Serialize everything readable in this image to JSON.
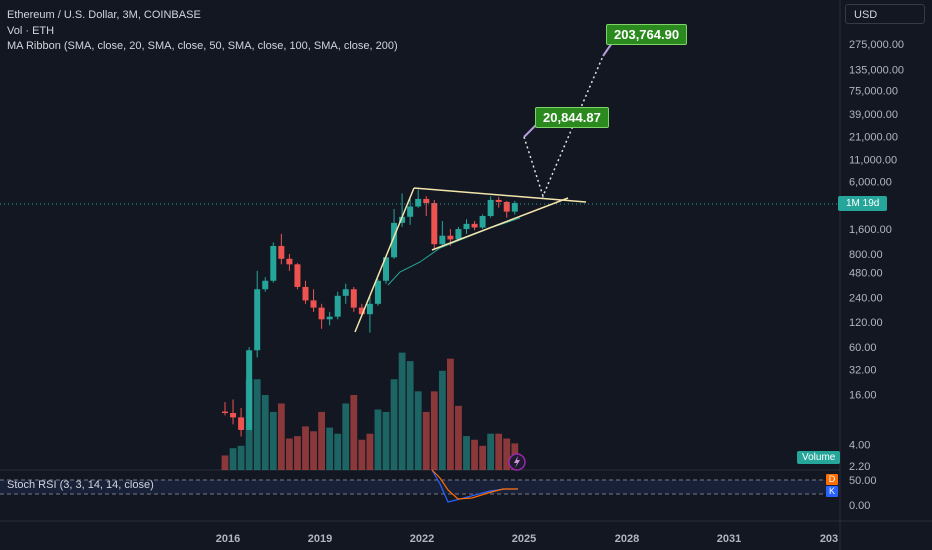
{
  "header": {
    "symbol_line": "Ethereum / U.S. Dollar, 3M, COINBASE",
    "vol_line": "Vol · ETH",
    "ma_line": "MA Ribbon (SMA, close, 20, SMA, close, 50, SMA, close, 100, SMA, close, 200)"
  },
  "currency": "USD",
  "targets": {
    "upper": "203,764.90",
    "lower": "20,844.87"
  },
  "current_tag": "1M 19d",
  "volume_tag": "Volume",
  "stoch": {
    "label": "Stoch RSI (3, 3, 14, 14, close)",
    "d": "D",
    "k": "K",
    "ticks": [
      "50.00",
      "0.00"
    ]
  },
  "colors": {
    "up": "#26a69a",
    "down": "#ef5350",
    "background": "#131722",
    "target": "#2b8a1e"
  },
  "chart_data": {
    "type": "candlestick",
    "y_scale": "log",
    "y_ticks": [
      "275,000.00",
      "135,000.00",
      "75,000.00",
      "39,000.00",
      "21,000.00",
      "11,000.00",
      "6,000.00",
      "1,600.00",
      "800.00",
      "480.00",
      "240.00",
      "120.00",
      "60.00",
      "32.00",
      "16.00",
      "4.00",
      "2.20"
    ],
    "x_ticks": [
      "2016",
      "2019",
      "2022",
      "2025",
      "2028",
      "2031",
      "203"
    ],
    "candles": [
      {
        "o": 10,
        "h": 13,
        "l": 9,
        "c": 9.6
      },
      {
        "o": 9.6,
        "h": 14,
        "l": 7,
        "c": 8.5
      },
      {
        "o": 8.5,
        "h": 11,
        "l": 5,
        "c": 6
      },
      {
        "o": 6,
        "h": 60,
        "l": 6,
        "c": 55
      },
      {
        "o": 55,
        "h": 500,
        "l": 45,
        "c": 300
      },
      {
        "o": 300,
        "h": 420,
        "l": 280,
        "c": 380
      },
      {
        "o": 380,
        "h": 1100,
        "l": 360,
        "c": 1000
      },
      {
        "o": 1000,
        "h": 1400,
        "l": 600,
        "c": 700
      },
      {
        "o": 700,
        "h": 800,
        "l": 500,
        "c": 600
      },
      {
        "o": 600,
        "h": 620,
        "l": 300,
        "c": 320
      },
      {
        "o": 320,
        "h": 380,
        "l": 200,
        "c": 220
      },
      {
        "o": 220,
        "h": 300,
        "l": 160,
        "c": 180
      },
      {
        "o": 180,
        "h": 200,
        "l": 100,
        "c": 130
      },
      {
        "o": 130,
        "h": 160,
        "l": 110,
        "c": 140
      },
      {
        "o": 140,
        "h": 280,
        "l": 130,
        "c": 250
      },
      {
        "o": 250,
        "h": 350,
        "l": 200,
        "c": 300
      },
      {
        "o": 300,
        "h": 320,
        "l": 160,
        "c": 180
      },
      {
        "o": 180,
        "h": 200,
        "l": 140,
        "c": 150
      },
      {
        "o": 150,
        "h": 250,
        "l": 90,
        "c": 200
      },
      {
        "o": 200,
        "h": 400,
        "l": 190,
        "c": 380
      },
      {
        "o": 380,
        "h": 750,
        "l": 350,
        "c": 730
      },
      {
        "o": 730,
        "h": 2800,
        "l": 700,
        "c": 1900
      },
      {
        "o": 1900,
        "h": 4300,
        "l": 1700,
        "c": 2250
      },
      {
        "o": 2250,
        "h": 3700,
        "l": 1800,
        "c": 3000
      },
      {
        "o": 3000,
        "h": 4800,
        "l": 2900,
        "c": 3700
      },
      {
        "o": 3700,
        "h": 4000,
        "l": 2300,
        "c": 3300
      },
      {
        "o": 3300,
        "h": 3600,
        "l": 900,
        "c": 1050
      },
      {
        "o": 1050,
        "h": 2000,
        "l": 1000,
        "c": 1330
      },
      {
        "o": 1330,
        "h": 1600,
        "l": 1000,
        "c": 1200
      },
      {
        "o": 1200,
        "h": 1700,
        "l": 1150,
        "c": 1600
      },
      {
        "o": 1600,
        "h": 2100,
        "l": 1400,
        "c": 1850
      },
      {
        "o": 1850,
        "h": 2000,
        "l": 1550,
        "c": 1670
      },
      {
        "o": 1670,
        "h": 2400,
        "l": 1600,
        "c": 2300
      },
      {
        "o": 2300,
        "h": 4000,
        "l": 2200,
        "c": 3600
      },
      {
        "o": 3600,
        "h": 3900,
        "l": 2900,
        "c": 3400
      },
      {
        "o": 3400,
        "h": 3500,
        "l": 2200,
        "c": 2600
      },
      {
        "o": 2600,
        "h": 3500,
        "l": 2400,
        "c": 3300
      }
    ],
    "volume": [
      {
        "v": 1.2,
        "up": false
      },
      {
        "v": 1.8,
        "up": true
      },
      {
        "v": 2.0,
        "up": true
      },
      {
        "v": 7.5,
        "up": true
      },
      {
        "v": 7.5,
        "up": true
      },
      {
        "v": 6.2,
        "up": true
      },
      {
        "v": 4.8,
        "up": true
      },
      {
        "v": 5.5,
        "up": false
      },
      {
        "v": 2.6,
        "up": false
      },
      {
        "v": 2.8,
        "up": false
      },
      {
        "v": 3.6,
        "up": false
      },
      {
        "v": 3.2,
        "up": false
      },
      {
        "v": 4.8,
        "up": false
      },
      {
        "v": 3.5,
        "up": true
      },
      {
        "v": 3.0,
        "up": true
      },
      {
        "v": 5.5,
        "up": true
      },
      {
        "v": 6.2,
        "up": false
      },
      {
        "v": 2.5,
        "up": false
      },
      {
        "v": 3.0,
        "up": false
      },
      {
        "v": 5.0,
        "up": true
      },
      {
        "v": 4.8,
        "up": true
      },
      {
        "v": 7.5,
        "up": true
      },
      {
        "v": 9.7,
        "up": true
      },
      {
        "v": 9.0,
        "up": true
      },
      {
        "v": 6.5,
        "up": true
      },
      {
        "v": 4.8,
        "up": false
      },
      {
        "v": 6.5,
        "up": false
      },
      {
        "v": 8.2,
        "up": true
      },
      {
        "v": 9.2,
        "up": false
      },
      {
        "v": 5.3,
        "up": false
      },
      {
        "v": 2.8,
        "up": true
      },
      {
        "v": 2.5,
        "up": false
      },
      {
        "v": 2.0,
        "up": false
      },
      {
        "v": 3.0,
        "up": true
      },
      {
        "v": 3.0,
        "up": false
      },
      {
        "v": 2.6,
        "up": false
      },
      {
        "v": 2.2,
        "up": false
      }
    ]
  }
}
